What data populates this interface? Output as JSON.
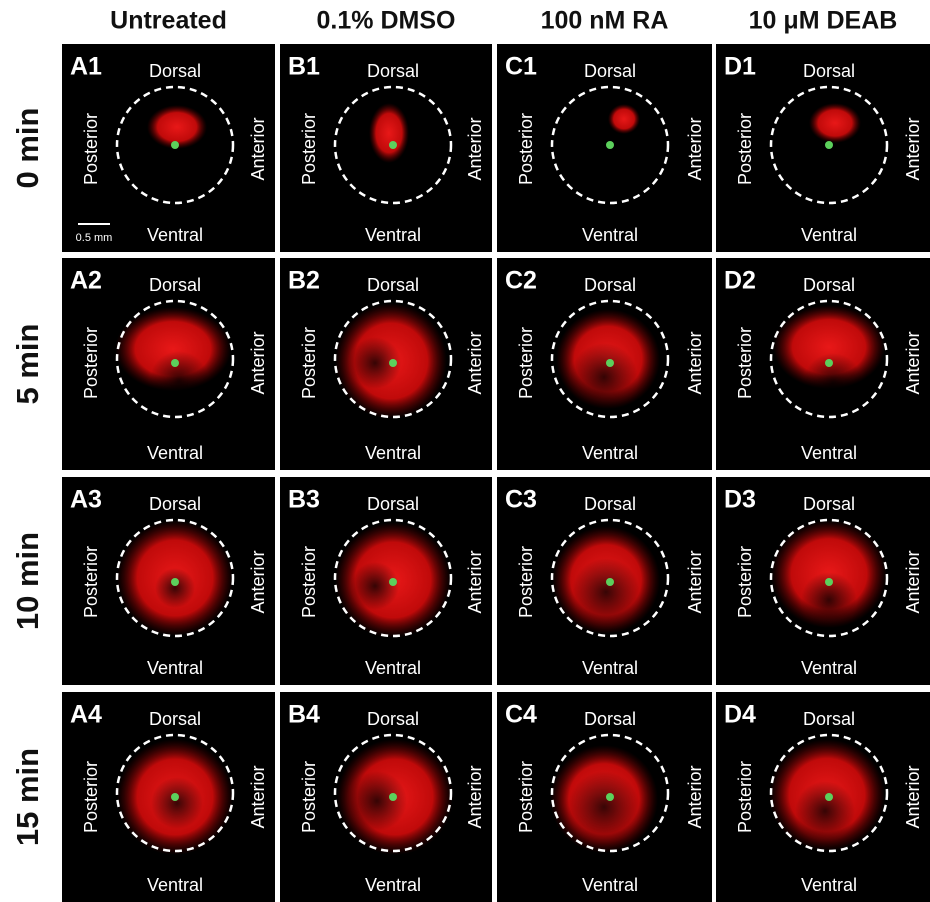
{
  "columns": [
    "Untreated",
    "0.1% DMSO",
    "100 nM RA",
    "10 μM DEAB"
  ],
  "rows": [
    "0 min",
    "5 min",
    "10 min",
    "15 min"
  ],
  "scale_bar": "0.5 mm",
  "panels": [
    {
      "id": "A1",
      "dorsal": "Dorsal",
      "ventral": "Ventral",
      "posterior": "Posterior",
      "anterior": "Anterior"
    },
    {
      "id": "B1",
      "dorsal": "Dorsal",
      "ventral": "Ventral",
      "posterior": "Posterior",
      "anterior": "Anterior"
    },
    {
      "id": "C1",
      "dorsal": "Dorsal",
      "ventral": "Ventral",
      "posterior": "Posterior",
      "anterior": "Anterior"
    },
    {
      "id": "D1",
      "dorsal": "Dorsal",
      "ventral": "Ventral",
      "posterior": "Posterior",
      "anterior": "Anterior"
    },
    {
      "id": "A2",
      "dorsal": "Dorsal",
      "ventral": "Ventral",
      "posterior": "Posterior",
      "anterior": "Anterior"
    },
    {
      "id": "B2",
      "dorsal": "Dorsal",
      "ventral": "Ventral",
      "posterior": "Posterior",
      "anterior": "Anterior"
    },
    {
      "id": "C2",
      "dorsal": "Dorsal",
      "ventral": "Ventral",
      "posterior": "Posterior",
      "anterior": "Anterior"
    },
    {
      "id": "D2",
      "dorsal": "Dorsal",
      "ventral": "Ventral",
      "posterior": "Posterior",
      "anterior": "Anterior"
    },
    {
      "id": "A3",
      "dorsal": "Dorsal",
      "ventral": "Ventral",
      "posterior": "Posterior",
      "anterior": "Anterior"
    },
    {
      "id": "B3",
      "dorsal": "Dorsal",
      "ventral": "Ventral",
      "posterior": "Posterior",
      "anterior": "Anterior"
    },
    {
      "id": "C3",
      "dorsal": "Dorsal",
      "ventral": "Ventral",
      "posterior": "Posterior",
      "anterior": "Anterior"
    },
    {
      "id": "D3",
      "dorsal": "Dorsal",
      "ventral": "Ventral",
      "posterior": "Posterior",
      "anterior": "Anterior"
    },
    {
      "id": "A4",
      "dorsal": "Dorsal",
      "ventral": "Ventral",
      "posterior": "Posterior",
      "anterior": "Anterior"
    },
    {
      "id": "B4",
      "dorsal": "Dorsal",
      "ventral": "Ventral",
      "posterior": "Posterior",
      "anterior": "Anterior"
    },
    {
      "id": "C4",
      "dorsal": "Dorsal",
      "ventral": "Ventral",
      "posterior": "Posterior",
      "anterior": "Anterior"
    },
    {
      "id": "D4",
      "dorsal": "Dorsal",
      "ventral": "Ventral",
      "posterior": "Posterior",
      "anterior": "Anterior"
    }
  ]
}
